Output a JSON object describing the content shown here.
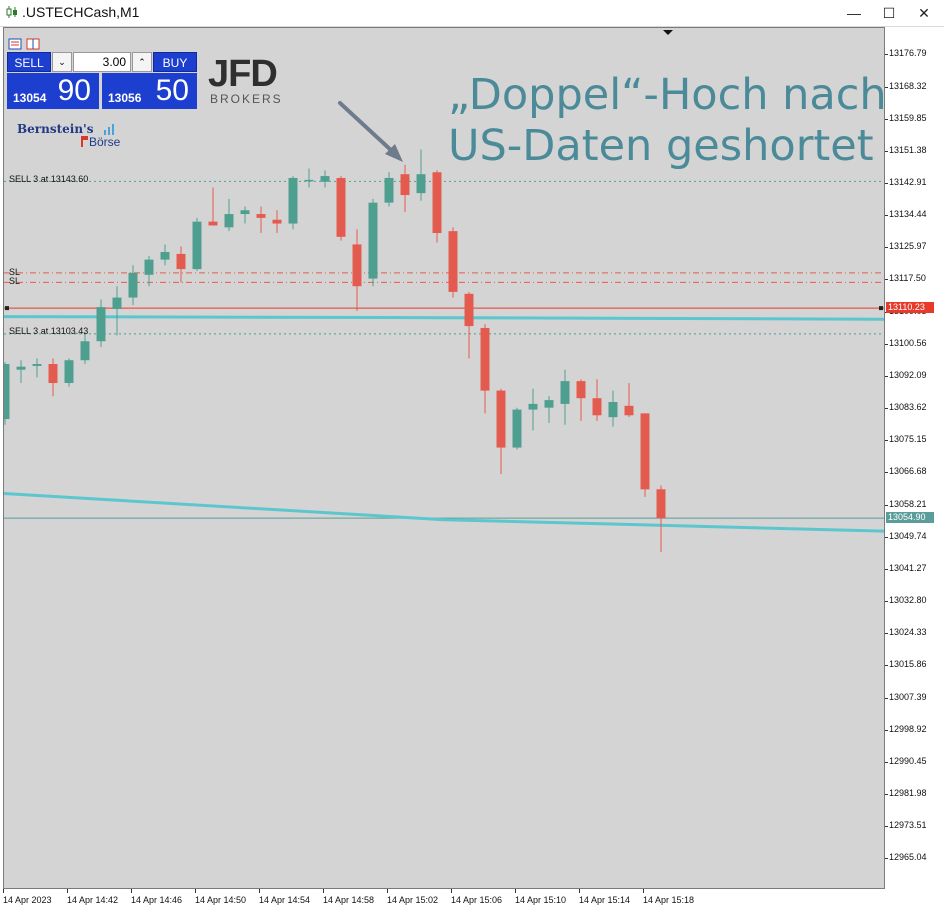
{
  "window": {
    "title": ".USTECHCash,M1",
    "controls": {
      "minimize": "—",
      "maximize": "☐",
      "close": "✕"
    }
  },
  "trade_panel": {
    "sell_label": "SELL",
    "buy_label": "BUY",
    "lot_value": "3.00",
    "lot_down": "⌄",
    "lot_up": "⌃",
    "sell_quote_small": "13054",
    "sell_quote_big": "90",
    "buy_quote_small": "13056",
    "buy_quote_big": "50",
    "sell_color": "#1c3fd0",
    "buy_color": "#1c3fd0"
  },
  "logos": {
    "jfd": {
      "name": "JFD",
      "sub": "BROKERS"
    },
    "bernstein": {
      "line1": "Bernstein's",
      "line2": "Börse"
    }
  },
  "headline": {
    "line1": "„Doppel“-Hoch nach",
    "line2": "US-Daten geshortet",
    "color": "#4a8a99"
  },
  "order_labels": {
    "sell_upper": "SELL 3 at 13143.60",
    "sell_lower": "SELL 3 at 13103.43",
    "sl1": "SL",
    "sl2": "SL"
  },
  "price_markers": {
    "red_line": "13110.23",
    "current": "13054.90",
    "red_color": "#e8392a",
    "current_color": "#5a9d9a"
  },
  "chart_data": {
    "type": "candlestick",
    "symbol": ".USTECHCash",
    "timeframe": "M1",
    "ylim": [
      12957.5,
      13184.0
    ],
    "price_ticks": [
      "13176.79",
      "13168.32",
      "13159.85",
      "13151.38",
      "13142.91",
      "13134.44",
      "13125.97",
      "13117.50",
      "13109.03",
      "13100.56",
      "13092.09",
      "13083.62",
      "13075.15",
      "13066.68",
      "13058.21",
      "13049.74",
      "13041.27",
      "13032.80",
      "13024.33",
      "13015.86",
      "13007.39",
      "12998.92",
      "12990.45",
      "12981.98",
      "12973.51",
      "12965.04"
    ],
    "time_ticks": [
      "14 Apr 2023",
      "14 Apr 14:42",
      "14 Apr 14:46",
      "14 Apr 14:50",
      "14 Apr 14:54",
      "14 Apr 14:58",
      "14 Apr 15:02",
      "14 Apr 15:06",
      "14 Apr 15:10",
      "14 Apr 15:14",
      "14 Apr 15:18"
    ],
    "up_color": "#4f9f91",
    "down_color": "#e35b4e",
    "candles": [
      {
        "o": 13081.0,
        "h": 13096.0,
        "l": 13079.5,
        "c": 13095.5
      },
      {
        "o": 13094.0,
        "h": 13096.5,
        "l": 13090.5,
        "c": 13094.8
      },
      {
        "o": 13095.0,
        "h": 13097.0,
        "l": 13092.0,
        "c": 13095.5
      },
      {
        "o": 13095.5,
        "h": 13097.0,
        "l": 13087.0,
        "c": 13090.5
      },
      {
        "o": 13090.5,
        "h": 13097.0,
        "l": 13089.5,
        "c": 13096.5
      },
      {
        "o": 13096.5,
        "h": 13103.8,
        "l": 13095.5,
        "c": 13101.5
      },
      {
        "o": 13101.5,
        "h": 13112.5,
        "l": 13100.0,
        "c": 13110.5
      },
      {
        "o": 13110.0,
        "h": 13116.0,
        "l": 13103.0,
        "c": 13113.0
      },
      {
        "o": 13113.0,
        "h": 13121.5,
        "l": 13111.0,
        "c": 13119.5
      },
      {
        "o": 13119.0,
        "h": 13124.0,
        "l": 13116.0,
        "c": 13123.0
      },
      {
        "o": 13123.0,
        "h": 13127.0,
        "l": 13121.5,
        "c": 13125.0
      },
      {
        "o": 13124.5,
        "h": 13126.5,
        "l": 13117.0,
        "c": 13120.5
      },
      {
        "o": 13120.5,
        "h": 13134.0,
        "l": 13120.0,
        "c": 13133.0
      },
      {
        "o": 13133.0,
        "h": 13142.0,
        "l": 13132.0,
        "c": 13132.0
      },
      {
        "o": 13131.5,
        "h": 13139.0,
        "l": 13130.5,
        "c": 13135.0
      },
      {
        "o": 13135.0,
        "h": 13137.0,
        "l": 13132.5,
        "c": 13136.0
      },
      {
        "o": 13135.0,
        "h": 13137.0,
        "l": 13130.0,
        "c": 13134.0
      },
      {
        "o": 13133.5,
        "h": 13136.0,
        "l": 13130.0,
        "c": 13132.5
      },
      {
        "o": 13132.5,
        "h": 13145.0,
        "l": 13131.0,
        "c": 13144.5
      },
      {
        "o": 13144.0,
        "h": 13147.0,
        "l": 13142.0,
        "c": 13144.0
      },
      {
        "o": 13143.5,
        "h": 13146.5,
        "l": 13142.0,
        "c": 13145.0
      },
      {
        "o": 13144.5,
        "h": 13145.0,
        "l": 13128.0,
        "c": 13129.0
      },
      {
        "o": 13127.0,
        "h": 13131.0,
        "l": 13109.5,
        "c": 13116.0
      },
      {
        "o": 13118.0,
        "h": 13139.0,
        "l": 13116.0,
        "c": 13138.0
      },
      {
        "o": 13138.0,
        "h": 13146.0,
        "l": 13137.0,
        "c": 13144.5
      },
      {
        "o": 13145.5,
        "h": 13148.0,
        "l": 13135.5,
        "c": 13140.0
      },
      {
        "o": 13140.5,
        "h": 13152.0,
        "l": 13138.5,
        "c": 13145.5
      },
      {
        "o": 13146.0,
        "h": 13146.5,
        "l": 13127.5,
        "c": 13130.0
      },
      {
        "o": 13130.5,
        "h": 13131.5,
        "l": 13113.0,
        "c": 13114.5
      },
      {
        "o": 13114.0,
        "h": 13114.5,
        "l": 13097.0,
        "c": 13105.5
      },
      {
        "o": 13105.0,
        "h": 13106.0,
        "l": 13082.5,
        "c": 13088.5
      },
      {
        "o": 13088.5,
        "h": 13089.0,
        "l": 13066.5,
        "c": 13073.5
      },
      {
        "o": 13073.5,
        "h": 13084.0,
        "l": 13073.0,
        "c": 13083.5
      },
      {
        "o": 13083.5,
        "h": 13089.0,
        "l": 13078.0,
        "c": 13085.0
      },
      {
        "o": 13084.0,
        "h": 13087.0,
        "l": 13080.0,
        "c": 13086.0
      },
      {
        "o": 13085.0,
        "h": 13094.0,
        "l": 13079.5,
        "c": 13091.0
      },
      {
        "o": 13091.0,
        "h": 13091.5,
        "l": 13080.5,
        "c": 13086.5
      },
      {
        "o": 13086.5,
        "h": 13091.5,
        "l": 13080.5,
        "c": 13082.0
      },
      {
        "o": 13081.5,
        "h": 13088.5,
        "l": 13079.0,
        "c": 13085.5
      },
      {
        "o": 13084.5,
        "h": 13090.5,
        "l": 13081.5,
        "c": 13082.0
      },
      {
        "o": 13082.5,
        "h": 13082.5,
        "l": 13060.5,
        "c": 13062.5
      },
      {
        "o": 13062.5,
        "h": 13063.5,
        "l": 13046.0,
        "c": 13054.9
      }
    ],
    "levels": {
      "sell_upper": 13143.6,
      "sell_lower": 13103.43,
      "sl_upper": 13119.5,
      "sl_lower": 13117.0,
      "red_line": 13110.23,
      "current": 13054.9,
      "ma_fast": [
        13108.0,
        13107.7,
        13107.3
      ],
      "ma_slow": [
        13061.4,
        13054.5,
        13051.5
      ]
    }
  }
}
